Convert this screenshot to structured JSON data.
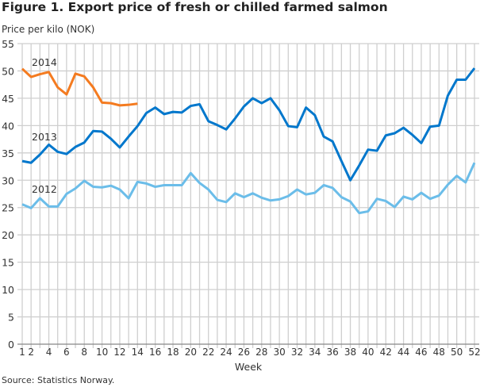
{
  "chart_data": {
    "type": "line",
    "title": "Figure 1. Export price of fresh or chilled farmed salmon",
    "ylabel": "Price per kilo (NOK)",
    "xlabel": "Week",
    "source": "Source: Statistics Norway.",
    "xlim": [
      1,
      52
    ],
    "ylim": [
      0,
      55
    ],
    "yticks": [
      0,
      5,
      10,
      15,
      20,
      25,
      30,
      35,
      40,
      45,
      50,
      55
    ],
    "xticks": [
      1,
      2,
      4,
      6,
      8,
      10,
      12,
      14,
      16,
      18,
      20,
      22,
      24,
      26,
      28,
      30,
      32,
      34,
      36,
      38,
      40,
      42,
      44,
      46,
      48,
      50,
      52
    ],
    "grid": true,
    "legend": "inline labels",
    "series": [
      {
        "name": "2012",
        "color": "#6bbde9",
        "values": [
          25.6,
          24.9,
          26.7,
          25.2,
          25.2,
          27.5,
          28.5,
          29.9,
          28.8,
          28.7,
          29.0,
          28.3,
          26.7,
          29.7,
          29.4,
          28.8,
          29.1,
          29.1,
          29.1,
          31.3,
          29.5,
          28.3,
          26.4,
          26.0,
          27.6,
          26.9,
          27.6,
          26.8,
          26.3,
          26.5,
          27.1,
          28.3,
          27.4,
          27.7,
          29.1,
          28.6,
          26.9,
          26.1,
          24.0,
          24.3,
          26.6,
          26.2,
          25.1,
          27.0,
          26.5,
          27.7,
          26.6,
          27.2,
          29.2,
          30.8,
          29.6,
          33.2
        ]
      },
      {
        "name": "2013",
        "color": "#0077cc",
        "values": [
          33.5,
          33.2,
          34.7,
          36.5,
          35.2,
          34.8,
          36.1,
          36.9,
          39.0,
          38.9,
          37.6,
          36.0,
          38.0,
          39.9,
          42.3,
          43.3,
          42.1,
          42.5,
          42.4,
          43.6,
          43.9,
          40.8,
          40.1,
          39.3,
          41.3,
          43.5,
          45.0,
          44.1,
          45.0,
          42.8,
          39.9,
          39.7,
          43.3,
          41.9,
          38.0,
          37.1,
          33.5,
          30.0,
          32.7,
          35.6,
          35.4,
          38.2,
          38.6,
          39.6,
          38.3,
          36.8,
          39.8,
          40.0,
          45.5,
          48.4,
          48.4,
          50.5
        ]
      },
      {
        "name": "2014",
        "color": "#f47b20",
        "values": [
          50.4,
          48.9,
          49.4,
          49.8,
          47.0,
          45.7,
          49.5,
          49.0,
          47.0,
          44.2,
          44.1,
          43.7,
          43.8,
          44.0
        ]
      }
    ]
  }
}
